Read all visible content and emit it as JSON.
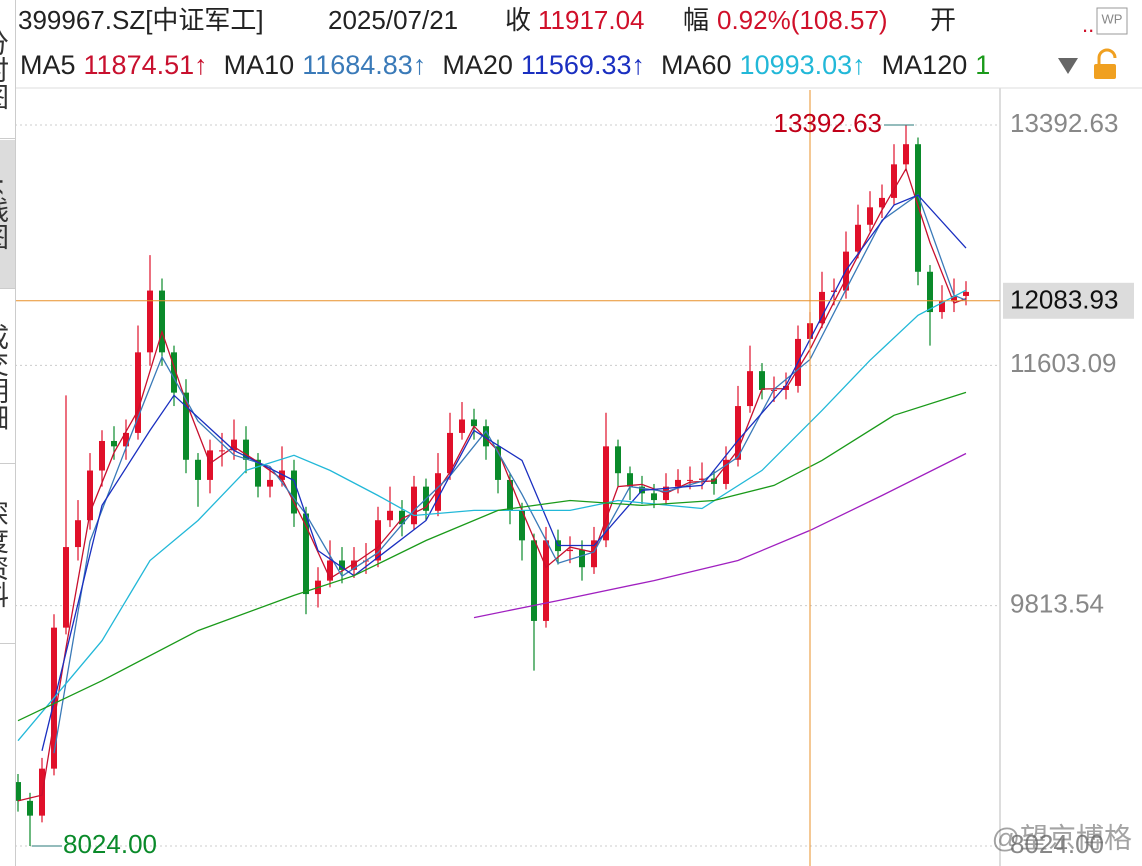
{
  "header": {
    "code": "399967.SZ[中证军工]",
    "date": "2025/07/21",
    "close_label": "收",
    "close": "11917.04",
    "change_label": "幅",
    "change": "0.92%(108.57)",
    "open_label": "开",
    "more": "..",
    "wp": "WP"
  },
  "side_tabs": [
    "分时图",
    "K线图",
    "成交明细",
    "深度资料"
  ],
  "watermark": "@望京博格",
  "chart_data": {
    "type": "candlestick",
    "up_color": "#e0102a",
    "down_color": "#0a8a2a",
    "ylim": [
      7875,
      13653.6
    ],
    "yticks": [
      13392.63,
      11603.09,
      9813.54,
      {
        "value": 8024,
        "label": "8024.00"
      }
    ],
    "grid": true,
    "open": [
      8500,
      8360,
      8250,
      8600,
      9650,
      10250,
      10450,
      10820,
      11040,
      11000,
      11100,
      11700,
      12160,
      11700,
      11400,
      10900,
      10750,
      10970,
      10970,
      11050,
      10900,
      10700,
      10750,
      10820,
      10500,
      9900,
      10000,
      10150,
      10080,
      10150,
      10150,
      10450,
      10520,
      10420,
      10700,
      10520,
      10800,
      11100,
      11200,
      11150,
      11000,
      10750,
      10520,
      10300,
      9700,
      10300,
      10220,
      10230,
      10100,
      10300,
      11000,
      10800,
      10700,
      10650,
      10600,
      10700,
      10750,
      10750,
      10760,
      10720,
      10900,
      11300,
      11560,
      11420,
      11420,
      11450,
      11800,
      11917,
      12150,
      12160,
      12450,
      12650,
      12780,
      12850,
      13100,
      13250,
      12300,
      12000,
      12080,
      12120
    ],
    "high": [
      8560,
      8420,
      8680,
      9750,
      11380,
      10600,
      10950,
      11120,
      11150,
      11200,
      11900,
      12424,
      12250,
      11750,
      11500,
      10950,
      11050,
      11100,
      11200,
      11150,
      10950,
      10850,
      11000,
      10900,
      10550,
      10100,
      10300,
      10250,
      10250,
      10280,
      10550,
      10700,
      10600,
      10780,
      10760,
      10950,
      11250,
      11330,
      11280,
      11200,
      11050,
      10800,
      10580,
      10350,
      10400,
      10380,
      10330,
      10300,
      10400,
      11250,
      11050,
      10850,
      10780,
      10720,
      10800,
      10830,
      10850,
      10880,
      10820,
      11000,
      11450,
      11750,
      11620,
      11520,
      11550,
      11900,
      12000,
      12300,
      12250,
      12600,
      12800,
      12900,
      12950,
      13250,
      13392.63,
      13300,
      12350,
      12200,
      12250,
      12230
    ],
    "low": [
      8280,
      8024,
      8200,
      8550,
      9600,
      10150,
      10380,
      10700,
      10900,
      10900,
      11050,
      11600,
      11600,
      11300,
      10800,
      10550,
      10650,
      10850,
      10900,
      10800,
      10620,
      10620,
      10700,
      10400,
      9750,
      9800,
      9950,
      9980,
      10020,
      10050,
      10100,
      10400,
      10330,
      10380,
      10450,
      10480,
      10750,
      11050,
      11050,
      10900,
      10650,
      10420,
      10150,
      9330,
      9650,
      10120,
      10130,
      10000,
      10050,
      10250,
      10700,
      10600,
      10570,
      10540,
      10560,
      10650,
      10680,
      10680,
      10640,
      10680,
      10850,
      11250,
      11350,
      11330,
      11350,
      11400,
      11750,
      11880,
      12050,
      12100,
      12400,
      12600,
      12700,
      12800,
      13050,
      12200,
      11750,
      11950,
      12000,
      12050
    ],
    "close": [
      8360,
      8250,
      8600,
      9650,
      10250,
      10450,
      10820,
      11040,
      11000,
      11100,
      11700,
      12160,
      11700,
      11400,
      10900,
      10750,
      10970,
      10970,
      11050,
      10900,
      10700,
      10750,
      10820,
      10500,
      9900,
      10000,
      10150,
      10080,
      10150,
      10150,
      10450,
      10520,
      10420,
      10700,
      10520,
      10800,
      11100,
      11200,
      11150,
      11000,
      10750,
      10520,
      10300,
      9700,
      10300,
      10220,
      10230,
      10100,
      10300,
      11000,
      10800,
      10700,
      10650,
      10600,
      10700,
      10750,
      10750,
      10760,
      10720,
      10900,
      11300,
      11560,
      11420,
      11420,
      11450,
      11800,
      11917,
      12150,
      12160,
      12450,
      12650,
      12780,
      12850,
      13100,
      13250,
      12300,
      12000,
      12080,
      12120,
      12150
    ],
    "series": [
      {
        "name": "MA5",
        "label": "11874.51↑",
        "color": "#c8102e",
        "x": [
          0,
          2,
          4,
          6,
          8,
          10,
          12,
          14,
          16,
          18,
          20,
          22,
          24,
          26,
          28,
          30,
          32,
          34,
          36,
          38,
          40,
          42,
          44,
          46,
          48,
          50,
          52,
          54,
          56,
          58,
          60,
          62,
          64,
          66,
          68,
          70,
          72,
          74,
          76,
          78,
          79
        ],
        "values": [
          8360,
          8403,
          9500,
          10507,
          10953,
          11267,
          11853,
          11333,
          10873,
          10997,
          10883,
          10757,
          10407,
          10017,
          10127,
          10250,
          10463,
          10547,
          10807,
          11150,
          10967,
          10523,
          10100,
          10250,
          10210,
          10700,
          10717,
          10650,
          10733,
          10743,
          10973,
          11427,
          11430,
          11722,
          12076,
          12420,
          12760,
          13067,
          12517,
          12067,
          12100
        ]
      },
      {
        "name": "MA10",
        "label": "11684.83↑",
        "color": "#3a7ab8",
        "x": [
          3,
          6,
          9,
          12,
          15,
          18,
          21,
          24,
          27,
          30,
          33,
          36,
          39,
          42,
          45,
          48,
          51,
          54,
          57,
          60,
          63,
          66,
          69,
          72,
          75,
          78,
          79
        ],
        "values": [
          8715,
          10293,
          10990,
          11665,
          11188,
          10935,
          10850,
          10493,
          10033,
          10208,
          10523,
          10780,
          11113,
          10643,
          10130,
          10213,
          10700,
          10663,
          10740,
          10920,
          11425,
          11647,
          12169,
          12683,
          12875,
          12125,
          12088
        ]
      },
      {
        "name": "MA20",
        "label": "11569.33↑",
        "color": "#1a2fc0",
        "x": [
          2,
          7,
          11,
          13,
          18,
          23,
          25,
          28,
          34,
          38,
          42,
          45,
          48,
          52,
          57,
          60,
          64,
          69,
          73,
          75,
          79
        ],
        "values": [
          8733,
          10560,
          11119,
          11380,
          10970,
          10746,
          10224,
          10037,
          10448,
          11119,
          10895,
          10262,
          10262,
          10672,
          10709,
          11044,
          11454,
          12312,
          12797,
          12871,
          12476
        ]
      },
      {
        "name": "MA60",
        "label": "10993.03↑",
        "color": "#22b8d8",
        "x": [
          0,
          7,
          11,
          15,
          19,
          23,
          26,
          30,
          33,
          38,
          42,
          46,
          50,
          57,
          62,
          67,
          71,
          75,
          79
        ],
        "values": [
          8808,
          9553,
          10150,
          10448,
          10821,
          10933,
          10821,
          10634,
          10485,
          10523,
          10523,
          10523,
          10597,
          10537,
          10821,
          11268,
          11641,
          11976,
          12163
        ]
      },
      {
        "name": "MA120",
        "label": "1",
        "color": "#1a9a1a",
        "x": [
          0,
          7,
          15,
          23,
          28,
          34,
          40,
          46,
          52,
          58,
          63,
          67,
          73,
          79
        ],
        "values": [
          8957,
          9255,
          9628,
          9890,
          10037,
          10299,
          10523,
          10597,
          10560,
          10597,
          10709,
          10895,
          11231,
          11402
        ]
      },
      {
        "color": "#a020c0",
        "x": [
          38,
          45,
          53,
          60,
          66,
          72,
          79
        ],
        "values": [
          9725,
          9851,
          10000,
          10150,
          10374,
          10634,
          10947
        ]
      }
    ],
    "annotations": {
      "high_index": 74,
      "low_index": 1,
      "low_label": "8024.00"
    },
    "crosshair": {
      "index": 66,
      "price": 12083.93
    }
  }
}
